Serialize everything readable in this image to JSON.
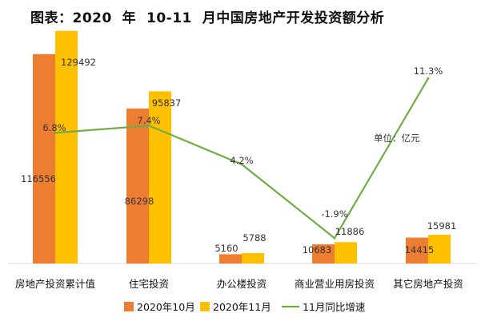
{
  "title": "图表：2020  年  10-11  月中国房地产开发投资额分析",
  "chart_data": {
    "type": "bar",
    "title": "图表：2020  年  10-11  月中国房地产开发投资额分析",
    "unit_label": "单位：亿元",
    "categories": [
      "房地产投资累计值",
      "住宅投资",
      "办公楼投资",
      "商业营业用房投资",
      "其它房地产投资"
    ],
    "series": [
      {
        "name": "2020年10月",
        "type": "bar",
        "color": "#ED7D31",
        "values": [
          116556,
          86298,
          5160,
          10683,
          14415
        ]
      },
      {
        "name": "2020年11月",
        "type": "bar",
        "color": "#FFC000",
        "values": [
          129492,
          95837,
          5788,
          11886,
          15981
        ]
      },
      {
        "name": "11月同比增速",
        "type": "line",
        "color": "#70AD47",
        "values": [
          6.8,
          7.4,
          4.2,
          -1.9,
          11.3
        ],
        "labels": [
          "6.8%",
          "7.4%",
          "4.2%",
          "-1.9%",
          "11.3%"
        ]
      }
    ],
    "ylim": [
      0,
      140000
    ],
    "y2lim": [
      -4,
      12.5
    ],
    "grid": false,
    "legend": "bottom"
  }
}
